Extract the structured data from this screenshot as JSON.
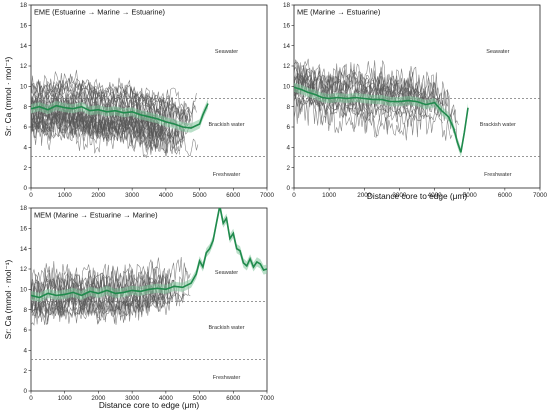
{
  "chart_data": [
    {
      "type": "line",
      "title": "EME (Estuarine → Marine → Estuarine)",
      "xlabel": "",
      "ylabel": "Sr: Ca (mmol · mol⁻¹)",
      "xlim": [
        0,
        7000
      ],
      "ylim": [
        0,
        18
      ],
      "x_ticks": [
        0,
        1000,
        2000,
        3000,
        4000,
        5000,
        6000,
        7000
      ],
      "y_ticks": [
        0,
        2,
        4,
        6,
        8,
        10,
        12,
        14,
        16,
        18
      ],
      "thresholds": [
        8.8,
        3.1
      ],
      "zones": [
        {
          "label": "Seawater",
          "x": 5800,
          "y": 13.3
        },
        {
          "label": "Brackish water",
          "x": 5800,
          "y": 6.1
        },
        {
          "label": "Freshwater",
          "x": 5800,
          "y": 1.2
        }
      ],
      "individual_count": 30,
      "individual_xmax": 5000,
      "individual_range": [
        3.0,
        13.5
      ],
      "mean_series": [
        [
          0,
          7.8
        ],
        [
          250,
          8.0
        ],
        [
          500,
          7.7
        ],
        [
          750,
          8.1
        ],
        [
          1000,
          7.9
        ],
        [
          1250,
          7.8
        ],
        [
          1500,
          8.0
        ],
        [
          1750,
          7.6
        ],
        [
          2000,
          7.7
        ],
        [
          2250,
          7.5
        ],
        [
          2500,
          7.6
        ],
        [
          2750,
          7.4
        ],
        [
          3000,
          7.5
        ],
        [
          3250,
          7.2
        ],
        [
          3500,
          7.0
        ],
        [
          3750,
          6.8
        ],
        [
          4000,
          6.5
        ],
        [
          4250,
          6.3
        ],
        [
          4500,
          6.0
        ],
        [
          4750,
          5.9
        ],
        [
          5000,
          6.3
        ],
        [
          5100,
          7.2
        ],
        [
          5250,
          8.3
        ]
      ]
    },
    {
      "type": "line",
      "title": "ME (Marine → Estuarine)",
      "xlabel": "Distance core to edge (μm)",
      "ylabel": "",
      "xlim": [
        0,
        7000
      ],
      "ylim": [
        0,
        18
      ],
      "x_ticks": [
        0,
        1000,
        2000,
        3000,
        4000,
        5000,
        6000,
        7000
      ],
      "y_ticks": [
        0,
        2,
        4,
        6,
        8,
        10,
        12,
        14,
        16,
        18
      ],
      "thresholds": [
        8.8,
        3.1
      ],
      "zones": [
        {
          "label": "Seawater",
          "x": 5800,
          "y": 13.3
        },
        {
          "label": "Brackish water",
          "x": 5800,
          "y": 6.1
        },
        {
          "label": "Freshwater",
          "x": 5800,
          "y": 1.2
        }
      ],
      "individual_count": 18,
      "individual_xmax": 4800,
      "individual_range": [
        4.5,
        13.6
      ],
      "mean_series": [
        [
          0,
          9.9
        ],
        [
          200,
          9.7
        ],
        [
          400,
          9.4
        ],
        [
          600,
          9.2
        ],
        [
          800,
          8.9
        ],
        [
          1000,
          8.8
        ],
        [
          1250,
          8.9
        ],
        [
          1500,
          8.8
        ],
        [
          1750,
          8.9
        ],
        [
          2000,
          8.8
        ],
        [
          2250,
          8.7
        ],
        [
          2500,
          8.7
        ],
        [
          2750,
          8.5
        ],
        [
          3000,
          8.5
        ],
        [
          3250,
          8.6
        ],
        [
          3500,
          8.5
        ],
        [
          3750,
          8.2
        ],
        [
          4000,
          8.4
        ],
        [
          4200,
          7.6
        ],
        [
          4400,
          7.0
        ],
        [
          4550,
          5.8
        ],
        [
          4650,
          4.5
        ],
        [
          4750,
          3.5
        ],
        [
          4850,
          5.5
        ],
        [
          4950,
          7.9
        ]
      ]
    },
    {
      "type": "line",
      "title": "MEM (Marine → Estuarine → Marine)",
      "xlabel": "Distance core to edge (μm)",
      "ylabel": "Sr: Ca (mmol · mol⁻¹)",
      "xlim": [
        0,
        7000
      ],
      "ylim": [
        0,
        18
      ],
      "x_ticks": [
        0,
        1000,
        2000,
        3000,
        4000,
        5000,
        6000,
        7000
      ],
      "y_ticks": [
        0,
        2,
        4,
        6,
        8,
        10,
        12,
        14,
        16,
        18
      ],
      "thresholds": [
        8.8,
        3.1
      ],
      "zones": [
        {
          "label": "Seawater",
          "x": 5800,
          "y": 11.5
        },
        {
          "label": "Brackish water",
          "x": 5800,
          "y": 6.1
        },
        {
          "label": "Freshwater",
          "x": 5800,
          "y": 1.2
        }
      ],
      "individual_count": 16,
      "individual_xmax": 4850,
      "individual_range": [
        6.5,
        13.5
      ],
      "mean_series": [
        [
          0,
          9.4
        ],
        [
          250,
          9.2
        ],
        [
          500,
          9.6
        ],
        [
          750,
          9.4
        ],
        [
          1000,
          9.5
        ],
        [
          1250,
          9.7
        ],
        [
          1500,
          9.4
        ],
        [
          1750,
          9.8
        ],
        [
          2000,
          9.6
        ],
        [
          2250,
          9.9
        ],
        [
          2500,
          9.6
        ],
        [
          2750,
          9.7
        ],
        [
          3000,
          9.9
        ],
        [
          3250,
          9.8
        ],
        [
          3500,
          10.0
        ],
        [
          3750,
          10.1
        ],
        [
          4000,
          10.0
        ],
        [
          4250,
          10.3
        ],
        [
          4500,
          10.2
        ],
        [
          4750,
          10.6
        ],
        [
          4900,
          11.5
        ],
        [
          5000,
          12.8
        ],
        [
          5100,
          12.2
        ],
        [
          5200,
          13.6
        ],
        [
          5300,
          14.0
        ],
        [
          5400,
          14.8
        ],
        [
          5500,
          16.5
        ],
        [
          5600,
          18.2
        ],
        [
          5700,
          16.5
        ],
        [
          5800,
          17.0
        ],
        [
          5900,
          15.0
        ],
        [
          6000,
          15.5
        ],
        [
          6100,
          14.0
        ],
        [
          6200,
          13.8
        ],
        [
          6300,
          12.6
        ],
        [
          6400,
          12.3
        ],
        [
          6500,
          13.0
        ],
        [
          6600,
          12.2
        ],
        [
          6700,
          12.7
        ],
        [
          6800,
          12.5
        ],
        [
          6900,
          11.9
        ],
        [
          7000,
          12.0
        ]
      ]
    }
  ]
}
